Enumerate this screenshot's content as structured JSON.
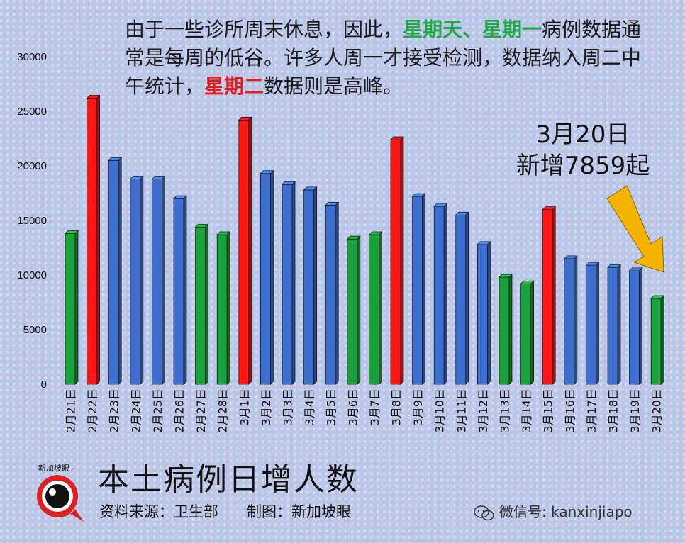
{
  "chart_data": {
    "type": "bar",
    "title": "本土病例日增人数",
    "ylim": [
      0,
      30000
    ],
    "yticks": [
      0,
      5000,
      10000,
      15000,
      20000,
      25000,
      30000
    ],
    "grid": false,
    "categories": [
      "2月21日",
      "2月22日",
      "2月23日",
      "2月24日",
      "2月25日",
      "2月26日",
      "2月27日",
      "2月28日",
      "3月1日",
      "3月2日",
      "3月3日",
      "3月4日",
      "3月5日",
      "3月6日",
      "3月7日",
      "3月8日",
      "3月9日",
      "3月10日",
      "3月11日",
      "3月12日",
      "3月13日",
      "3月14日",
      "3月15日",
      "3月16日",
      "3月17日",
      "3月18日",
      "3月19日",
      "3月20日"
    ],
    "values": [
      13800,
      26200,
      20500,
      18800,
      18800,
      17000,
      14400,
      13700,
      24200,
      19300,
      18300,
      17800,
      16400,
      13300,
      13700,
      22400,
      17200,
      16300,
      15500,
      12800,
      9800,
      9200,
      16000,
      11500,
      10900,
      10700,
      10400,
      7859
    ],
    "bar_colors": [
      "#1aa33c",
      "#ff1616",
      "#3d6ed0",
      "#3d6ed0",
      "#3d6ed0",
      "#3d6ed0",
      "#1aa33c",
      "#1aa33c",
      "#ff1616",
      "#3d6ed0",
      "#3d6ed0",
      "#3d6ed0",
      "#3d6ed0",
      "#1aa33c",
      "#1aa33c",
      "#ff1616",
      "#3d6ed0",
      "#3d6ed0",
      "#3d6ed0",
      "#3d6ed0",
      "#1aa33c",
      "#1aa33c",
      "#ff1616",
      "#3d6ed0",
      "#3d6ed0",
      "#3d6ed0",
      "#3d6ed0",
      "#1aa33c"
    ]
  },
  "note": {
    "part1": "由于一些诊所周末休息，因此，",
    "green_text": "星期天、星期一",
    "part2": "病例数据通常是每周的低谷。许多人周一才接受检测，数据纳入周二中午统计，",
    "red_text": "星期二",
    "part3": "数据则是高峰。"
  },
  "callout": {
    "line1": "3月20日",
    "line2": "新增7859起"
  },
  "source": {
    "data_source": "资料来源：卫生部",
    "made_by": "制图：新加坡眼"
  },
  "logo": {
    "text": "新加坡眼"
  },
  "wechat": {
    "label": "微信号: kanxinjiapo"
  },
  "colors": {
    "green": "#1aa33c",
    "red": "#ff1616",
    "blue": "#3d6ed0",
    "arrow": "#f5b400"
  }
}
